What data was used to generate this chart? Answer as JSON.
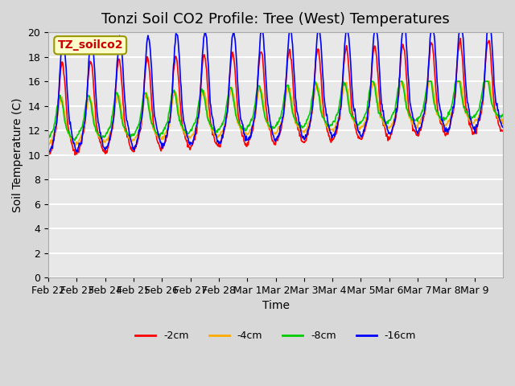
{
  "title": "Tonzi Soil CO2 Profile: Tree (West) Temperatures",
  "ylabel": "Soil Temperature (C)",
  "xlabel": "Time",
  "legend_label": "TZ_soilco2",
  "series_labels": [
    "-2cm",
    "-4cm",
    "-8cm",
    "-16cm"
  ],
  "series_colors": [
    "#ff0000",
    "#ffaa00",
    "#00cc00",
    "#0000ff"
  ],
  "ylim": [
    0,
    20
  ],
  "yticks": [
    0,
    2,
    4,
    6,
    8,
    10,
    12,
    14,
    16,
    18,
    20
  ],
  "background_color": "#d8d8d8",
  "plot_bg_color": "#e8e8e8",
  "grid_color": "#ffffff",
  "title_fontsize": 13,
  "label_fontsize": 10,
  "tick_fontsize": 9,
  "x_tick_labels": [
    "Feb 22",
    "Feb 23",
    "Feb 24",
    "Feb 25",
    "Feb 26",
    "Feb 27",
    "Feb 28",
    "Mar 1",
    "Mar 2",
    "Mar 3",
    "Mar 4",
    "Mar 5",
    "Mar 6",
    "Mar 7",
    "Mar 8",
    "Mar 9"
  ],
  "n_days": 16
}
